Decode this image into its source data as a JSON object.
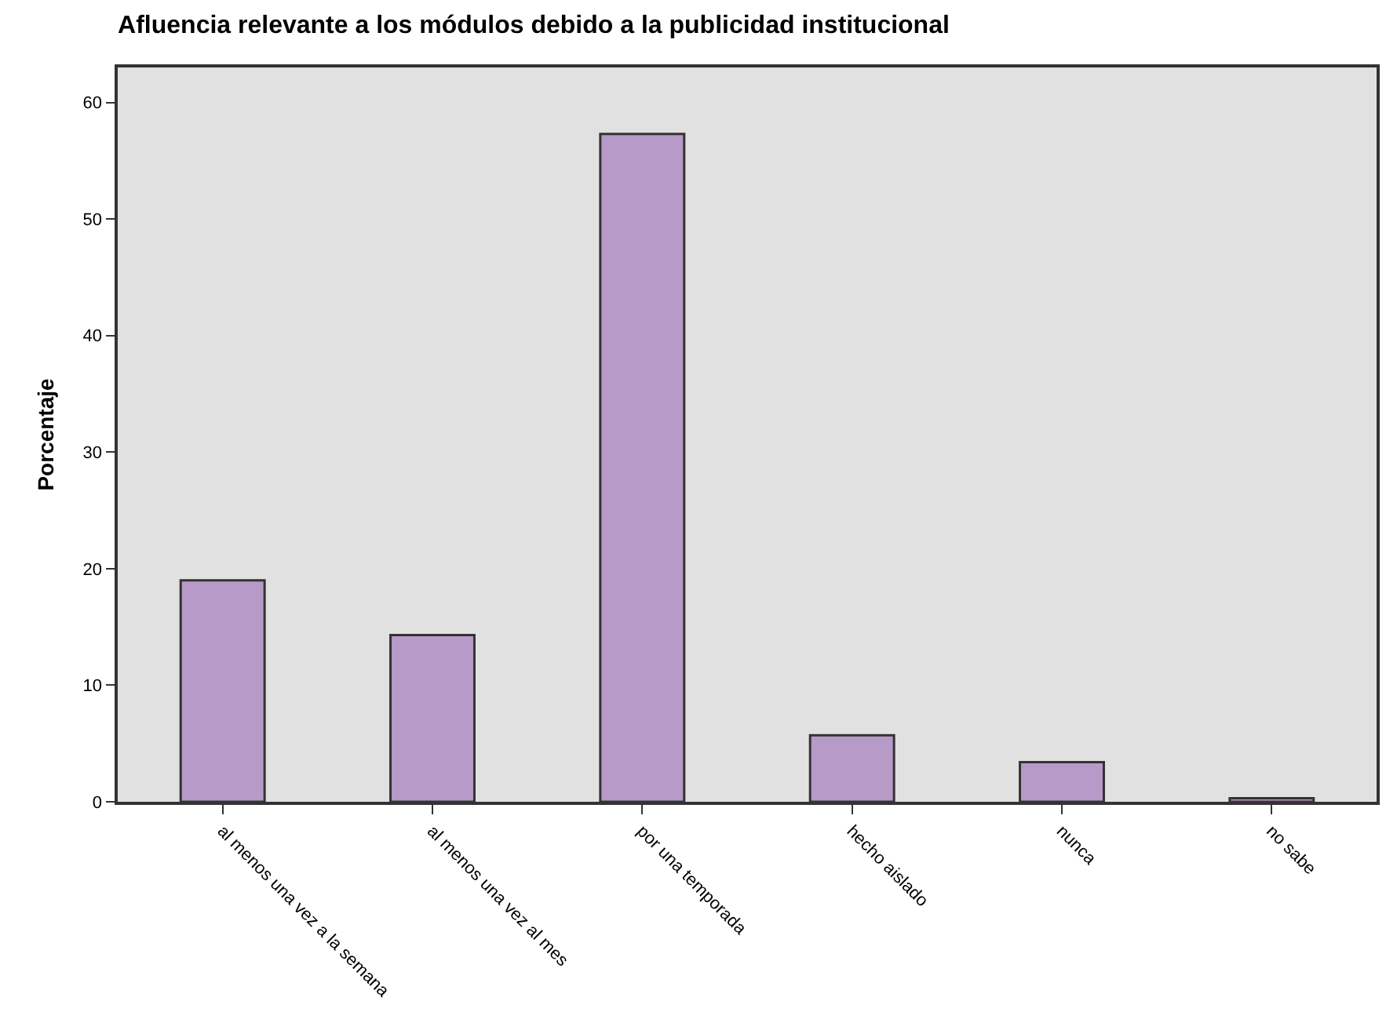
{
  "chart_data": {
    "type": "bar",
    "title": "Afluencia relevante a los módulos debido a la publicidad institucional",
    "ylabel": "Porcentaje",
    "categories": [
      "al menos una vez a la semana",
      "al menos una vez al mes",
      "por una temporada",
      "hecho aislado",
      "nunca",
      "no sabe"
    ],
    "values": [
      19.0,
      14.3,
      57.3,
      5.7,
      3.4,
      0.3
    ],
    "color": "#b89ac8",
    "ylim": [
      0,
      63
    ],
    "yticks": [
      0,
      10,
      20,
      30,
      40,
      50,
      60
    ],
    "grid": false
  }
}
